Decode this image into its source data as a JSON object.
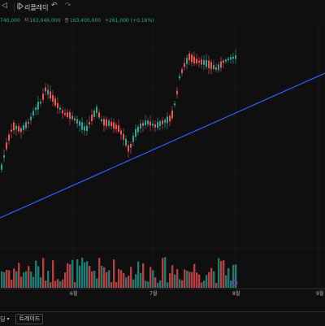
{
  "toolbar": {
    "back_icon": "chevron-left-icon",
    "replay_label": "리플레이",
    "undo_icon": "undo-icon",
    "redo_icon": "redo-icon"
  },
  "ohlc": {
    "open": "740,000",
    "high_label": "저",
    "high_value": "163,046,000",
    "close_label": "종",
    "close_value": "163,400,000",
    "change": "+261,000 (+0.16%)"
  },
  "x_axis": {
    "labels": [
      "6월",
      "7월",
      "8월",
      "9월"
    ]
  },
  "bottom": {
    "left_text": "딩",
    "dropdown_icon": "chevron-down-icon",
    "trade_tab_label": "트레이드"
  },
  "colors": {
    "up": "#26a69a",
    "down": "#ef5350",
    "trendline": "#2962ff",
    "background": "#0f0f0f"
  }
}
